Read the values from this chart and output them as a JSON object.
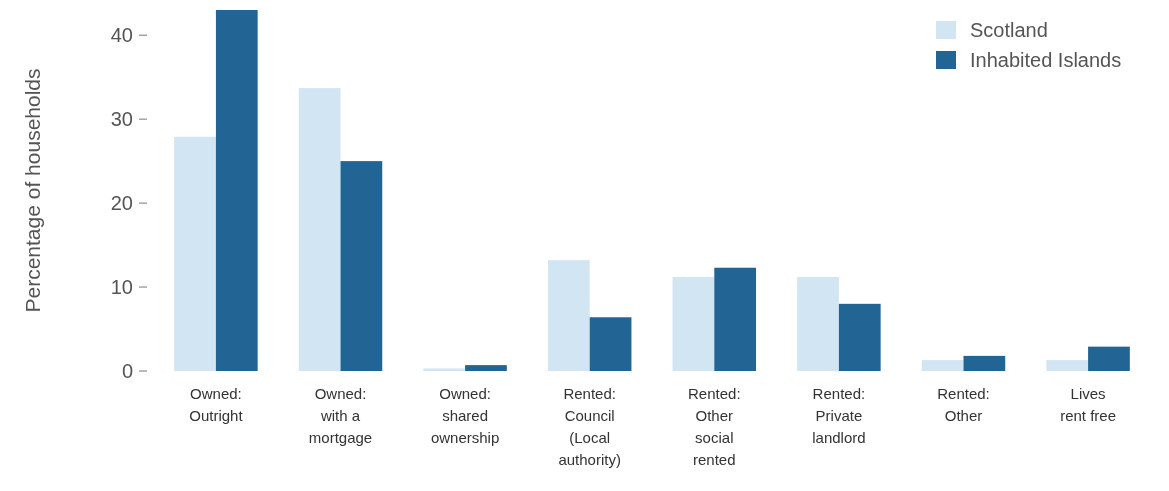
{
  "chart_data": {
    "type": "bar",
    "ylabel": "Percentage of households",
    "categories": [
      "Owned:\nOutright",
      "Owned:\nwith a\nmortgage",
      "Owned:\nshared\nownership",
      "Rented:\nCouncil\n(Local\nauthority)",
      "Rented:\nOther\nsocial\nrented",
      "Rented:\nPrivate\nlandlord",
      "Rented:\nOther",
      "Lives\nrent free"
    ],
    "series": [
      {
        "name": "Scotland",
        "color": "#d2e5f3",
        "values": [
          27.9,
          33.7,
          0.3,
          13.2,
          11.2,
          11.2,
          1.3,
          1.3
        ]
      },
      {
        "name": "Inhabited Islands",
        "color": "#226594",
        "values": [
          43,
          25.0,
          0.7,
          6.4,
          12.3,
          8.0,
          1.8,
          2.9
        ]
      }
    ],
    "ylim": [
      0,
      43
    ],
    "yticks": [
      0,
      10,
      20,
      30,
      40
    ],
    "legend": "top right",
    "grid": false
  }
}
